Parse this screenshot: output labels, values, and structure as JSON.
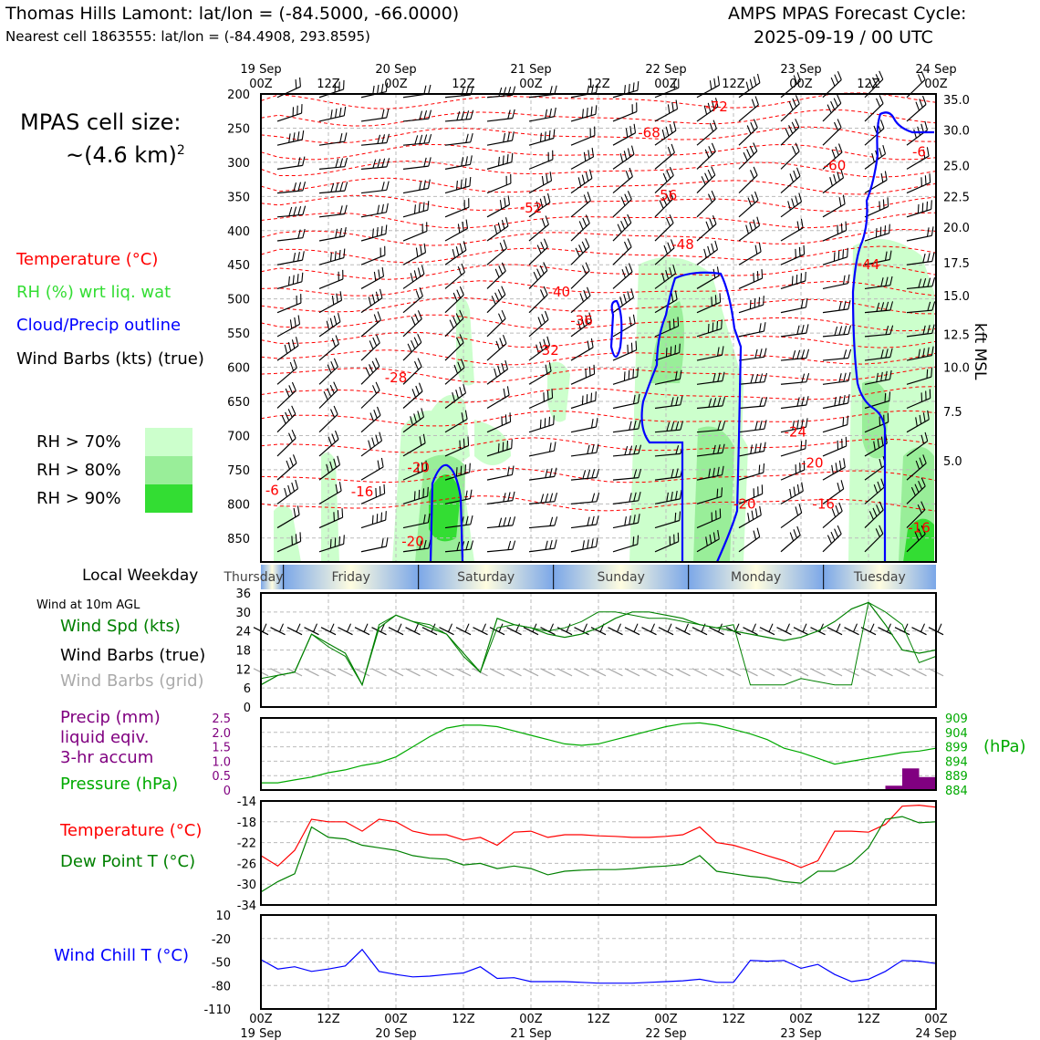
{
  "header": {
    "title_left": "Thomas Hills Lamont: lat/lon = (-84.5000, -66.0000)",
    "subtitle_left": "Nearest cell 1863555: lat/lon = (-84.4908, 293.8595)",
    "title_right_1": "AMPS MPAS Forecast Cycle:",
    "title_right_2": "2025-09-19 / 00 UTC"
  },
  "cell_size": {
    "line1": "MPAS cell size:",
    "line2": "~(4.6 km)",
    "sup": "2"
  },
  "legend_main": {
    "temperature": {
      "label": "Temperature (°C)",
      "color": "#ff0000"
    },
    "rh": {
      "label": "RH (%) wrt liq. wat",
      "color": "#33dd33"
    },
    "cloud": {
      "label": "Cloud/Precip outline",
      "color": "#0000ff"
    },
    "barbs": {
      "label": "Wind Barbs (kts) (true)",
      "color": "#000000"
    }
  },
  "rh_legend": [
    {
      "label": "RH > 70%",
      "color": "#ccffcc"
    },
    {
      "label": "RH > 80%",
      "color": "#99ee99"
    },
    {
      "label": "RH > 90%",
      "color": "#33dd33"
    }
  ],
  "weekday": {
    "label": "Local Weekday",
    "days": [
      "Thursday",
      "Friday",
      "Saturday",
      "Sunday",
      "Monday",
      "Tuesday"
    ]
  },
  "wind_panel": {
    "title": "Wind at 10m AGL",
    "spd_label": "Wind Spd (kts)",
    "barbs_true_label": "Wind Barbs (true)",
    "barbs_grid_label": "Wind Barbs (grid)",
    "spd_color": "#008000",
    "grid_color": "#aaaaaa"
  },
  "precip_panel": {
    "precip_label_1": "Precip (mm)",
    "precip_label_2": "liquid eqiv.",
    "precip_label_3": "3-hr accum",
    "pressure_label": "Pressure (hPa)",
    "unit_right": "(hPa)",
    "precip_color": "#800080",
    "pressure_color": "#00aa00"
  },
  "temp_panel": {
    "temp_label": "Temperature (°C)",
    "dew_label": "Dew Point T (°C)"
  },
  "chill_panel": {
    "label": "Wind Chill T (°C)"
  },
  "chart_data": [
    {
      "type": "time-height",
      "x_ticks": [
        {
          "hour": 0,
          "label": "19 Sep\n00Z"
        },
        {
          "hour": 12,
          "label": "12Z"
        },
        {
          "hour": 24,
          "label": "20 Sep\n00Z"
        },
        {
          "hour": 36,
          "label": "12Z"
        },
        {
          "hour": 48,
          "label": "21 Sep\n00Z"
        },
        {
          "hour": 60,
          "label": "12Z"
        },
        {
          "hour": 72,
          "label": "22 Sep\n00Z"
        },
        {
          "hour": 84,
          "label": "12Z"
        },
        {
          "hour": 96,
          "label": "23 Sep\n00Z"
        },
        {
          "hour": 108,
          "label": "12Z"
        },
        {
          "hour": 120,
          "label": "24 Sep\n00Z"
        }
      ],
      "y_left_pressure_hPa": [
        "200",
        "250",
        "300",
        "350",
        "400",
        "450",
        "500",
        "550",
        "600",
        "650",
        "700",
        "750",
        "800",
        "850"
      ],
      "y_right_kft": [
        "35.0",
        "30.0",
        "25.0",
        "22.5",
        "20.0",
        "17.5",
        "15.0",
        "12.5",
        "10.0",
        "7.5",
        "5.0"
      ],
      "y_right_label": "kft MSL",
      "ylim_hPa": [
        200,
        885
      ],
      "temperature_labels": [
        {
          "hour": 81,
          "p": 219,
          "text": "-72"
        },
        {
          "hour": 69,
          "p": 257,
          "text": "-68"
        },
        {
          "hour": 117,
          "p": 285,
          "text": "-6"
        },
        {
          "hour": 102,
          "p": 305,
          "text": "-60"
        },
        {
          "hour": 72,
          "p": 348,
          "text": "-56"
        },
        {
          "hour": 48,
          "p": 367,
          "text": "-52"
        },
        {
          "hour": 75,
          "p": 420,
          "text": "-48"
        },
        {
          "hour": 108,
          "p": 450,
          "text": "-44"
        },
        {
          "hour": 53,
          "p": 490,
          "text": "-40"
        },
        {
          "hour": 57,
          "p": 532,
          "text": "-36"
        },
        {
          "hour": 51,
          "p": 575,
          "text": "-32"
        },
        {
          "hour": 24,
          "p": 615,
          "text": "-28"
        },
        {
          "hour": 95,
          "p": 695,
          "text": "-24"
        },
        {
          "hour": 98,
          "p": 740,
          "text": "-20"
        },
        {
          "hour": 28,
          "p": 747,
          "text": "-20"
        },
        {
          "hour": 86,
          "p": 800,
          "text": "-20"
        },
        {
          "hour": 2,
          "p": 780,
          "text": "-6"
        },
        {
          "hour": 18,
          "p": 782,
          "text": "-16"
        },
        {
          "hour": 100,
          "p": 800,
          "text": "-16"
        },
        {
          "hour": 117,
          "p": 835,
          "text": "-16"
        },
        {
          "hour": 27,
          "p": 855,
          "text": "-20"
        }
      ]
    },
    {
      "type": "line",
      "name": "wind_speed",
      "ylim": [
        0,
        36
      ],
      "y_ticks": [
        "0",
        "6",
        "12",
        "18",
        "24",
        "30",
        "36"
      ],
      "x": [
        0,
        3,
        6,
        9,
        12,
        15,
        18,
        21,
        24,
        27,
        30,
        33,
        36,
        39,
        42,
        45,
        48,
        51,
        54,
        57,
        60,
        63,
        66,
        69,
        72,
        75,
        78,
        81,
        84,
        87,
        90,
        93,
        96,
        99,
        102,
        105,
        108,
        111,
        114,
        117,
        120
      ],
      "values": [
        7,
        10,
        11,
        23,
        20,
        17,
        7,
        25,
        29,
        27,
        25,
        23,
        17,
        11,
        28,
        26,
        25,
        23,
        22,
        23,
        25,
        28,
        30,
        30,
        29,
        28,
        26,
        25,
        24,
        23,
        22,
        21,
        22,
        24,
        27,
        31,
        33,
        26,
        18,
        17,
        18
      ],
      "values_b": [
        9,
        10,
        11,
        23,
        19,
        16,
        7,
        26,
        29,
        27,
        26,
        23,
        16,
        11,
        25,
        26,
        25,
        24,
        25,
        27,
        30,
        30,
        29,
        28,
        28,
        27,
        26,
        25,
        26,
        7,
        7,
        7,
        9,
        8,
        7,
        7,
        33,
        30,
        26,
        14,
        16
      ]
    },
    {
      "type": "bar+line",
      "name": "precip_pressure",
      "precip_ylim": [
        0,
        2.5
      ],
      "precip_ticks": [
        "0",
        "0.5",
        "1.0",
        "1.5",
        "2.0",
        "2.5"
      ],
      "pressure_ylim": [
        884,
        909
      ],
      "pressure_ticks": [
        "884",
        "889",
        "894",
        "899",
        "904",
        "909"
      ],
      "precip_bars": [
        {
          "x0": 111,
          "x1": 114,
          "value": 0.15
        },
        {
          "x0": 114,
          "x1": 117,
          "value": 0.75
        },
        {
          "x0": 117,
          "x1": 120,
          "value": 0.45
        }
      ],
      "x": [
        0,
        3,
        6,
        9,
        12,
        15,
        18,
        21,
        24,
        27,
        30,
        33,
        36,
        39,
        42,
        45,
        48,
        51,
        54,
        57,
        60,
        63,
        66,
        69,
        72,
        75,
        78,
        81,
        84,
        87,
        90,
        93,
        96,
        99,
        102,
        105,
        108,
        111,
        114,
        117,
        120
      ],
      "pressure": [
        886.5,
        886.5,
        887.5,
        888.5,
        890,
        891,
        892.5,
        893.5,
        895.5,
        899,
        902.5,
        905.5,
        906.5,
        906.5,
        906,
        904.5,
        903,
        901.5,
        900,
        899.5,
        900,
        901.5,
        903,
        904.5,
        906,
        907,
        907.3,
        906.5,
        905,
        903.5,
        901.5,
        898.5,
        897,
        895,
        893,
        894,
        895,
        896,
        897,
        897.5,
        898.5
      ]
    },
    {
      "type": "line",
      "name": "temperature_dewpoint",
      "ylim": [
        -34,
        -14
      ],
      "y_ticks": [
        "-14",
        "-18",
        "-22",
        "-26",
        "-30",
        "-34"
      ],
      "x": [
        0,
        3,
        6,
        9,
        12,
        15,
        18,
        21,
        24,
        27,
        30,
        33,
        36,
        39,
        42,
        45,
        48,
        51,
        54,
        57,
        60,
        63,
        66,
        69,
        72,
        75,
        78,
        81,
        84,
        87,
        90,
        93,
        96,
        99,
        102,
        105,
        108,
        111,
        114,
        117,
        120
      ],
      "temperature": [
        -24.5,
        -26.5,
        -23.5,
        -17.5,
        -18,
        -18,
        -19.8,
        -17.5,
        -18,
        -19.8,
        -20.5,
        -20.5,
        -21.5,
        -21,
        -22.5,
        -20,
        -19.8,
        -21,
        -20.5,
        -20.5,
        -20.7,
        -20.8,
        -21,
        -21,
        -20.8,
        -20.5,
        -19,
        -22,
        -22.5,
        -23.5,
        -24.5,
        -25.5,
        -26.8,
        -25.5,
        -19.8,
        -19.8,
        -20,
        -18.5,
        -15,
        -14.8,
        -15.2
      ],
      "dewpoint": [
        -31.5,
        -29.5,
        -28,
        -19,
        -21,
        -21.3,
        -22.5,
        -23,
        -23.5,
        -24.5,
        -25,
        -25.2,
        -26.3,
        -26,
        -27,
        -26.5,
        -27,
        -28.2,
        -27.5,
        -27.3,
        -27.2,
        -27.2,
        -27,
        -26.7,
        -26.5,
        -26.2,
        -24.5,
        -27.5,
        -28,
        -28.5,
        -28.8,
        -29.5,
        -29.8,
        -27.5,
        -27.5,
        -26,
        -23,
        -17.5,
        -17,
        -18.2,
        -18
      ]
    },
    {
      "type": "line",
      "name": "wind_chill",
      "ylim": [
        -110,
        10
      ],
      "y_ticks": [
        "10",
        "-20",
        "-50",
        "-80",
        "-110"
      ],
      "x": [
        0,
        3,
        6,
        9,
        12,
        15,
        18,
        21,
        24,
        27,
        30,
        33,
        36,
        39,
        42,
        45,
        48,
        51,
        54,
        57,
        60,
        63,
        66,
        69,
        72,
        75,
        78,
        81,
        84,
        87,
        90,
        93,
        96,
        99,
        102,
        105,
        108,
        111,
        114,
        117,
        120
      ],
      "values": [
        -47,
        -59,
        -56,
        -62,
        -59,
        -55,
        -34,
        -62,
        -66,
        -69,
        -68,
        -66,
        -64,
        -56,
        -71,
        -70,
        -75,
        -75,
        -75,
        -76,
        -77,
        -77,
        -77,
        -76,
        -75,
        -74,
        -72,
        -76,
        -76,
        -48,
        -49,
        -48,
        -58,
        -53,
        -66,
        -75,
        -72,
        -62,
        -48,
        -49,
        -52
      ],
      "x_ticks_bottom": [
        "00Z\n19 Sep",
        "12Z",
        "00Z\n20 Sep",
        "12Z",
        "00Z\n21 Sep",
        "12Z",
        "00Z\n22 Sep",
        "12Z",
        "00Z\n23 Sep",
        "12Z",
        "00Z\n24 Sep"
      ]
    }
  ]
}
